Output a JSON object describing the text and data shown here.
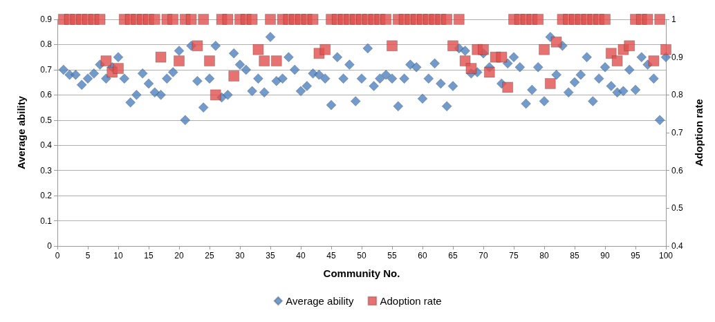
{
  "chart_data": {
    "type": "scatter",
    "xlabel": "Community No.",
    "ylabel": "Average ability",
    "y2label": "Adoption rate",
    "x": [
      1,
      2,
      3,
      4,
      5,
      6,
      7,
      8,
      9,
      10,
      11,
      12,
      13,
      14,
      15,
      16,
      17,
      18,
      19,
      20,
      21,
      22,
      23,
      24,
      25,
      26,
      27,
      28,
      29,
      30,
      31,
      32,
      33,
      34,
      35,
      36,
      37,
      38,
      39,
      40,
      41,
      42,
      43,
      44,
      45,
      46,
      47,
      48,
      49,
      50,
      51,
      52,
      53,
      54,
      55,
      56,
      57,
      58,
      59,
      60,
      61,
      62,
      63,
      64,
      65,
      66,
      67,
      68,
      69,
      70,
      71,
      72,
      73,
      74,
      75,
      76,
      77,
      78,
      79,
      80,
      81,
      82,
      83,
      84,
      85,
      86,
      87,
      88,
      89,
      90,
      91,
      92,
      93,
      94,
      95,
      96,
      97,
      98,
      99,
      100
    ],
    "series": [
      {
        "name": "Average ability",
        "color": "#4f81bd",
        "marker": "diamond",
        "values": [
          0.7,
          0.68,
          0.68,
          0.64,
          0.665,
          0.685,
          0.72,
          0.665,
          0.71,
          0.75,
          0.665,
          0.57,
          0.6,
          0.685,
          0.645,
          0.61,
          0.6,
          0.665,
          0.69,
          0.775,
          0.5,
          0.795,
          0.655,
          0.55,
          0.665,
          0.795,
          0.59,
          0.6,
          0.765,
          0.72,
          0.7,
          0.615,
          0.665,
          0.61,
          0.83,
          0.655,
          0.665,
          0.75,
          0.7,
          0.615,
          0.635,
          0.685,
          0.68,
          0.665,
          0.56,
          0.75,
          0.665,
          0.72,
          0.575,
          0.665,
          0.785,
          0.635,
          0.665,
          0.68,
          0.665,
          0.555,
          0.665,
          0.72,
          0.71,
          0.585,
          0.665,
          0.725,
          0.645,
          0.555,
          0.635,
          0.785,
          0.775,
          0.685,
          0.69,
          0.765,
          0.71,
          null,
          0.645,
          0.725,
          0.75,
          0.71,
          0.565,
          0.62,
          0.71,
          0.575,
          0.83,
          0.68,
          0.795,
          0.61,
          0.65,
          0.68,
          0.75,
          0.575,
          0.665,
          0.71,
          0.635,
          0.61,
          0.615,
          0.7,
          0.62,
          0.75,
          0.72,
          0.665,
          0.5,
          0.75
        ]
      },
      {
        "name": "Adoption rate",
        "color": "#e0504d",
        "marker": "square",
        "axis": "y2",
        "values": [
          1,
          1,
          1,
          1,
          1,
          1,
          1,
          0.89,
          0.86,
          0.87,
          1,
          1,
          1,
          1,
          1,
          1,
          0.9,
          1,
          1,
          0.89,
          1,
          1,
          0.93,
          1,
          0.89,
          0.8,
          1,
          1,
          0.85,
          1,
          1,
          1,
          0.92,
          0.89,
          1,
          0.89,
          1,
          1,
          1,
          1,
          1,
          1,
          0.91,
          0.92,
          1,
          1,
          1,
          1,
          1,
          1,
          1,
          1,
          1,
          1,
          0.93,
          1,
          1,
          1,
          1,
          1,
          1,
          1,
          1,
          1,
          0.93,
          1,
          0.89,
          0.87,
          0.92,
          0.92,
          0.86,
          0.9,
          0.9,
          0.82,
          1,
          1,
          1,
          1,
          1,
          0.92,
          0.83,
          0.94,
          1,
          1,
          1,
          1,
          1,
          1,
          1,
          1,
          0.91,
          0.89,
          0.92,
          0.93,
          1,
          1,
          1,
          0.89,
          1,
          0.92
        ]
      }
    ],
    "xlim": [
      0,
      100
    ],
    "xticks": [
      0,
      5,
      10,
      15,
      20,
      25,
      30,
      35,
      40,
      45,
      50,
      55,
      60,
      65,
      70,
      75,
      80,
      85,
      90,
      95,
      100
    ],
    "ylim": [
      0,
      0.9
    ],
    "yticks": [
      0,
      0.1,
      0.2,
      0.3,
      0.4,
      0.5,
      0.6,
      0.7,
      0.8,
      0.9
    ],
    "y2lim": [
      0.4,
      1
    ],
    "y2ticks": [
      0.4,
      0.5,
      0.6,
      0.7,
      0.8,
      0.9,
      1
    ],
    "grid": "y",
    "legend": "bottom"
  }
}
